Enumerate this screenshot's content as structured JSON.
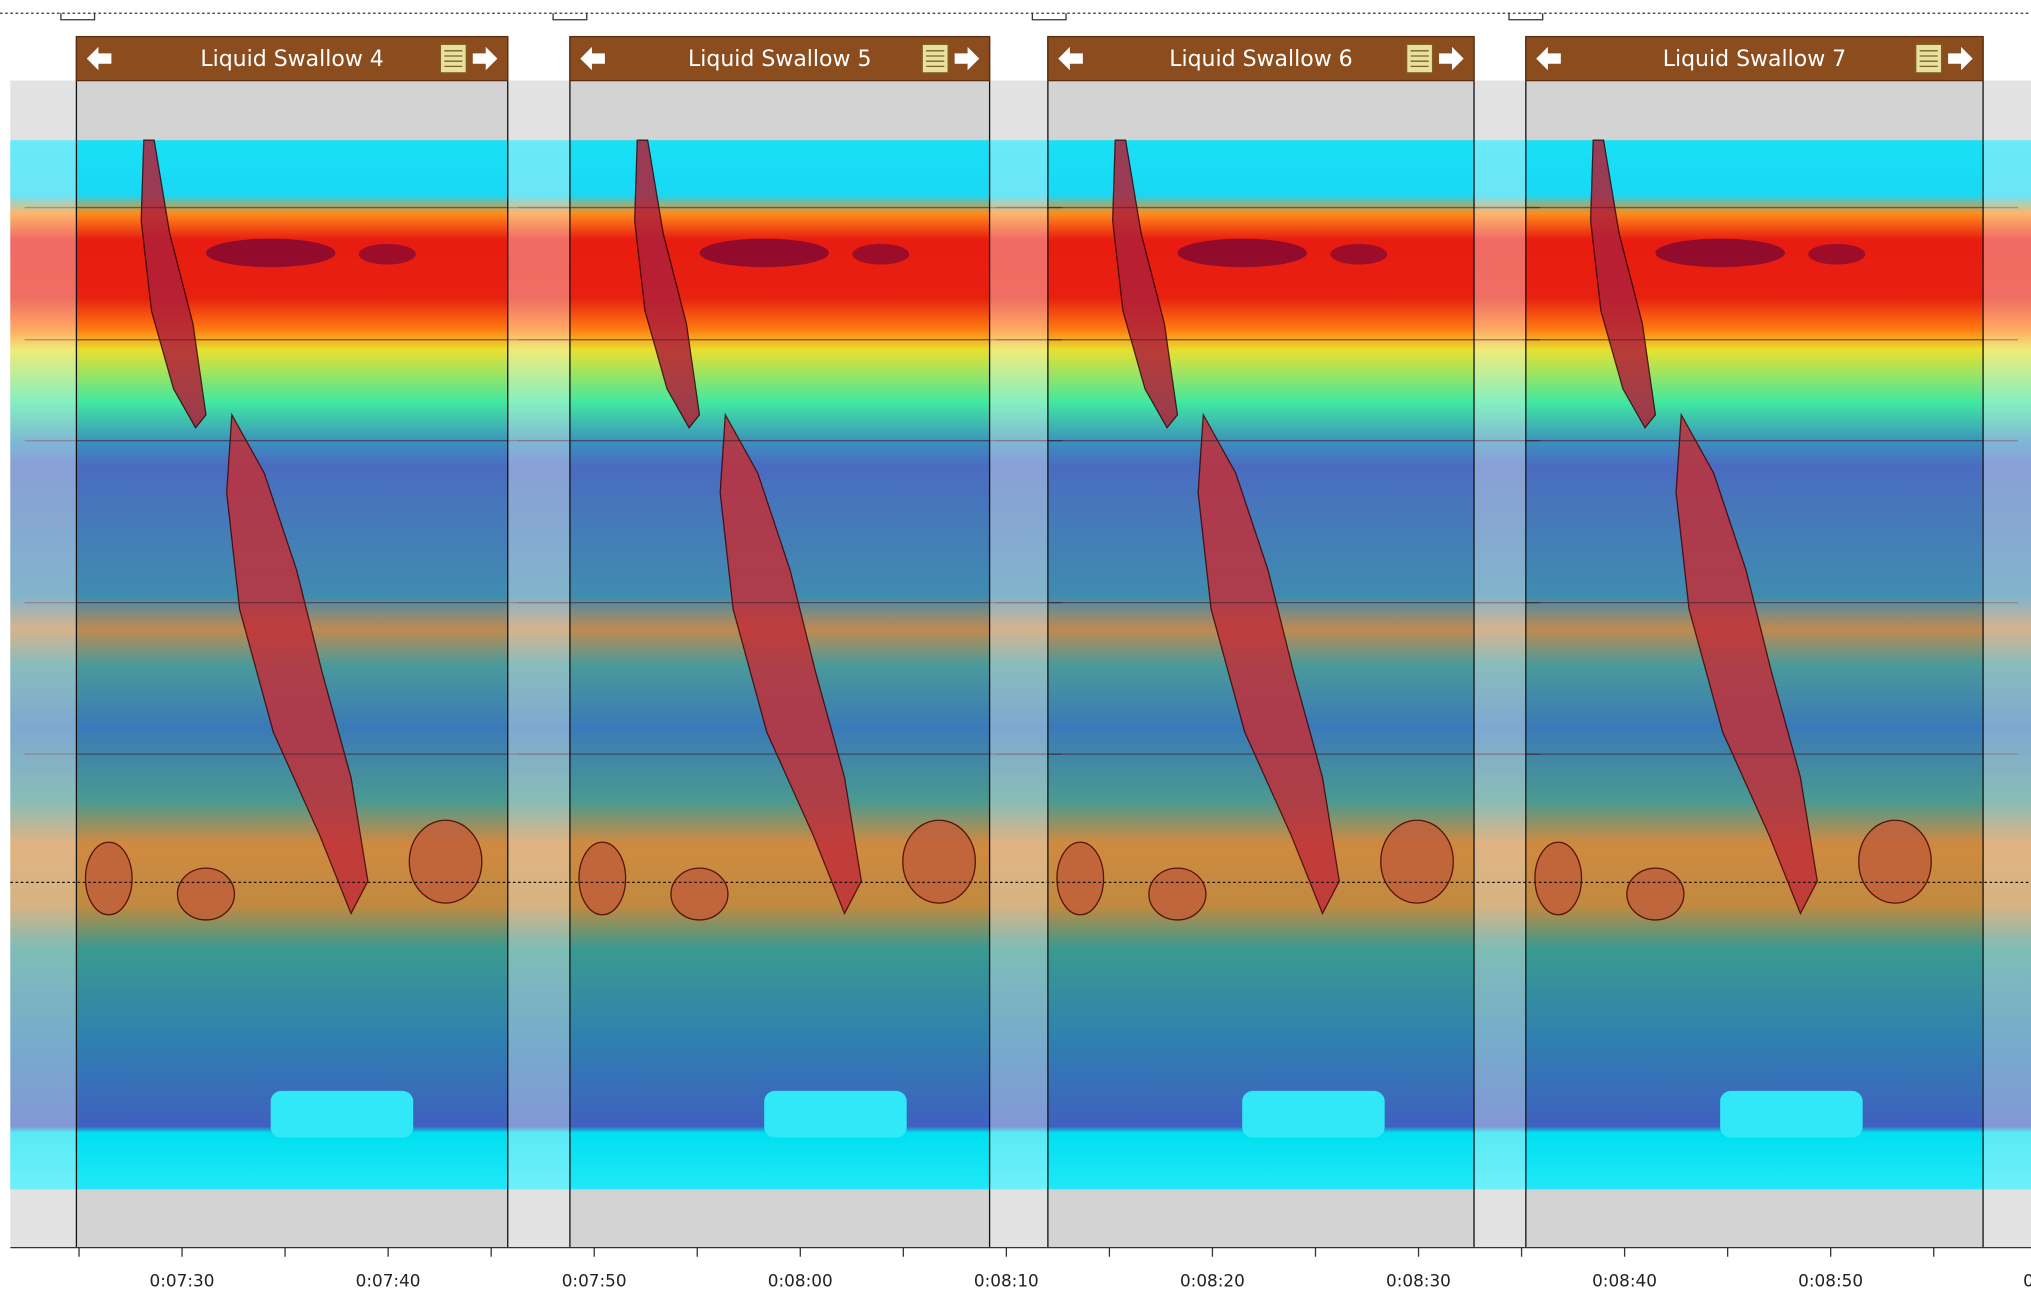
{
  "panels": [
    {
      "title": "Liquid Swallow 4"
    },
    {
      "title": "Liquid Swallow 5"
    },
    {
      "title": "Liquid Swallow 6"
    },
    {
      "title": "Liquid Swallow 7"
    }
  ],
  "time_axis": {
    "labels": [
      "0:07:30",
      "0:07:40",
      "0:07:50",
      "0:08:00",
      "0:08:10",
      "0:08:20",
      "0:08:30",
      "0:08:40",
      "0:08:50",
      "0:0"
    ]
  }
}
